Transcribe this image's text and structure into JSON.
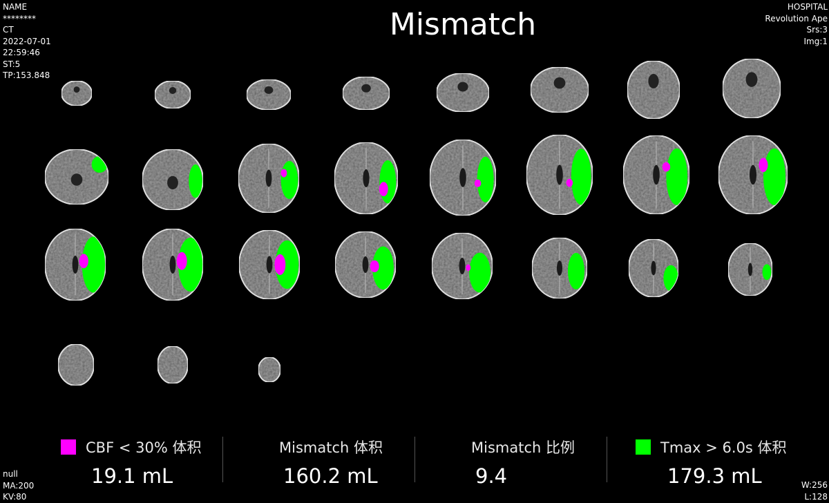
{
  "overlay": {
    "top_left": [
      "NAME",
      "********",
      "CT",
      "2022-07-01",
      "22:59:46",
      "ST:5",
      "TP:153.848"
    ],
    "top_right": [
      "HOSPITAL",
      "Revolution Ape",
      "Srs:3",
      "Img:1"
    ],
    "bottom_left": [
      "null",
      "MA:200",
      "KV:80"
    ],
    "bottom_right": [
      "W:256",
      "L:128"
    ]
  },
  "title": "Mismatch",
  "colors": {
    "core": "#ff00ff",
    "penumbra": "#00ff00",
    "background": "#000000",
    "tissue": "#5a5a5a"
  },
  "metrics": [
    {
      "label": "CBF < 30% 体积",
      "value": "19.1 mL",
      "swatch": "#ff00ff"
    },
    {
      "label": "Mismatch 体积",
      "value": "160.2 mL",
      "swatch": ""
    },
    {
      "label": "Mismatch 比例",
      "value": "9.4",
      "swatch": ""
    },
    {
      "label": "Tmax > 6.0s 体积",
      "value": "179.3 mL",
      "swatch": "#00ff00"
    }
  ]
}
